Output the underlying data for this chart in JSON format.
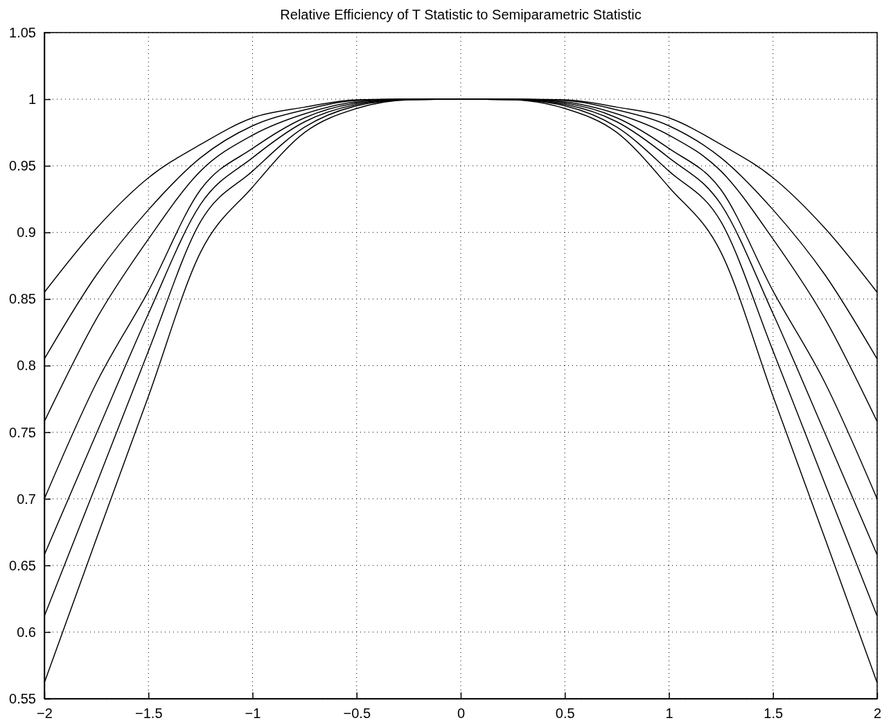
{
  "chart_data": {
    "type": "line",
    "title": "Relative Efficiency of T Statistic to Semiparametric Statistic",
    "x": [
      -2,
      -1.75,
      -1.5,
      -1.25,
      -1,
      -0.75,
      -0.5,
      -0.25,
      0,
      0.25,
      0.5,
      0.75,
      1,
      1.25,
      1.5,
      1.75,
      2
    ],
    "series": [
      {
        "color": "#000000",
        "values": [
          0.855,
          0.903,
          0.941,
          0.966,
          0.986,
          0.994,
          0.9995,
          1,
          1,
          1,
          0.9995,
          0.994,
          0.986,
          0.966,
          0.941,
          0.903,
          0.855
        ]
      },
      {
        "color": "#000000",
        "values": [
          0.805,
          0.868,
          0.917,
          0.956,
          0.98,
          0.992,
          0.999,
          1,
          1,
          1,
          0.999,
          0.992,
          0.98,
          0.956,
          0.917,
          0.868,
          0.805
        ]
      },
      {
        "color": "#000000",
        "values": [
          0.758,
          0.835,
          0.895,
          0.946,
          0.973,
          0.989,
          0.998,
          1,
          1,
          1,
          0.998,
          0.989,
          0.973,
          0.946,
          0.895,
          0.835,
          0.758
        ]
      },
      {
        "color": "#000000",
        "values": [
          0.7,
          0.787,
          0.856,
          0.932,
          0.963,
          0.986,
          0.997,
          0.9998,
          1,
          0.9998,
          0.997,
          0.986,
          0.963,
          0.932,
          0.856,
          0.787,
          0.7
        ]
      },
      {
        "color": "#000000",
        "values": [
          0.658,
          0.749,
          0.839,
          0.921,
          0.956,
          0.983,
          0.996,
          0.9997,
          1,
          0.9997,
          0.996,
          0.983,
          0.956,
          0.921,
          0.839,
          0.749,
          0.658
        ]
      },
      {
        "color": "#000000",
        "values": [
          0.612,
          0.711,
          0.811,
          0.908,
          0.946,
          0.979,
          0.995,
          0.9996,
          1,
          0.9996,
          0.995,
          0.979,
          0.946,
          0.908,
          0.811,
          0.711,
          0.612
        ]
      },
      {
        "color": "#000000",
        "values": [
          0.562,
          0.67,
          0.777,
          0.885,
          0.934,
          0.975,
          0.993,
          0.9995,
          1,
          0.9995,
          0.993,
          0.975,
          0.934,
          0.885,
          0.777,
          0.67,
          0.562
        ]
      }
    ],
    "xlim": [
      -2,
      2
    ],
    "ylim": [
      0.55,
      1.05
    ],
    "xticks": [
      {
        "value": -2,
        "label": "−2"
      },
      {
        "value": -1.5,
        "label": "−1.5"
      },
      {
        "value": -1,
        "label": "−1"
      },
      {
        "value": -0.5,
        "label": "−0.5"
      },
      0,
      0.5,
      1,
      1.5,
      2
    ],
    "yticks": [
      0.55,
      0.6,
      0.65,
      0.7,
      0.75,
      0.8,
      0.85,
      0.9,
      0.95,
      1,
      1.05
    ],
    "grid": true,
    "marker": "none",
    "line_style": "solid"
  }
}
